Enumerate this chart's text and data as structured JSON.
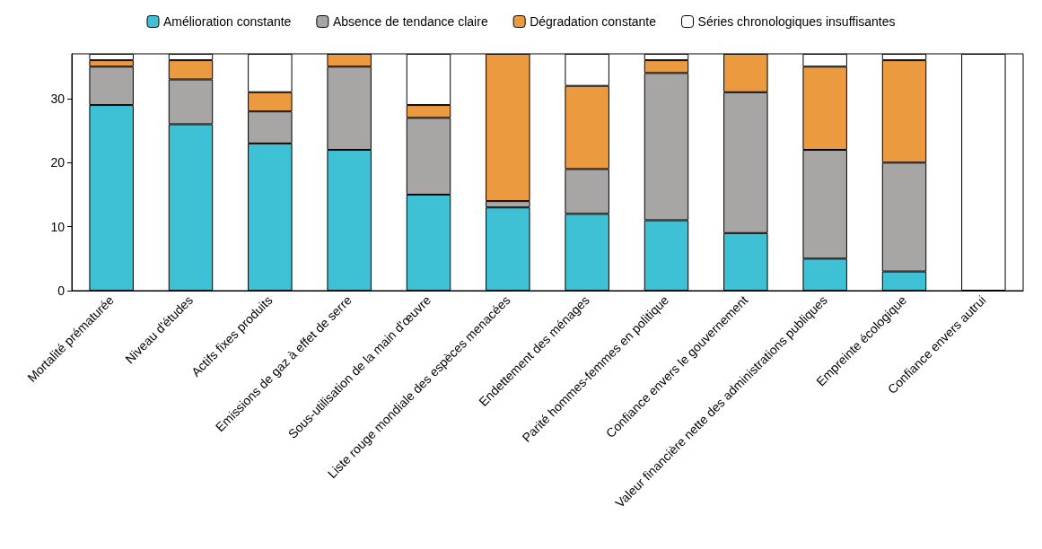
{
  "chart_data": {
    "type": "bar",
    "stacked": true,
    "categories": [
      "Mortalité prématurée",
      "Niveau d'études",
      "Actifs fixes produits",
      "Emissions de gaz à effet de serre",
      "Sous-utilisation de la main d'œuvre",
      "Liste rouge mondiale des espèces menacées",
      "Endettement des ménages",
      "Parité hommes-femmes en politique",
      "Confiance envers le gouvernement",
      "Valeur financière nette des administrations publiques",
      "Empreinte écologique",
      "Confiance envers autrui"
    ],
    "series": [
      {
        "name": "Amélioration constante",
        "color": "#3fc1d5",
        "values": [
          29,
          26,
          23,
          22,
          15,
          13,
          12,
          11,
          9,
          5,
          3,
          0
        ]
      },
      {
        "name": "Absence de tendance claire",
        "color": "#a8a5a5",
        "values": [
          6,
          7,
          5,
          13,
          12,
          1,
          7,
          23,
          22,
          17,
          17,
          0
        ]
      },
      {
        "name": "Dégradation constante",
        "color": "#ec9a40",
        "values": [
          1,
          3,
          3,
          2,
          2,
          23,
          13,
          2,
          6,
          13,
          16,
          0
        ]
      },
      {
        "name": "Séries chronologiques insuffisantes",
        "color": "#ffffff",
        "values": [
          1,
          1,
          6,
          0,
          8,
          0,
          5,
          1,
          0,
          2,
          1,
          37
        ]
      }
    ],
    "ylim": [
      0,
      37
    ],
    "yticks": [
      0,
      10,
      20,
      30
    ],
    "grid": false,
    "legend": "top"
  }
}
